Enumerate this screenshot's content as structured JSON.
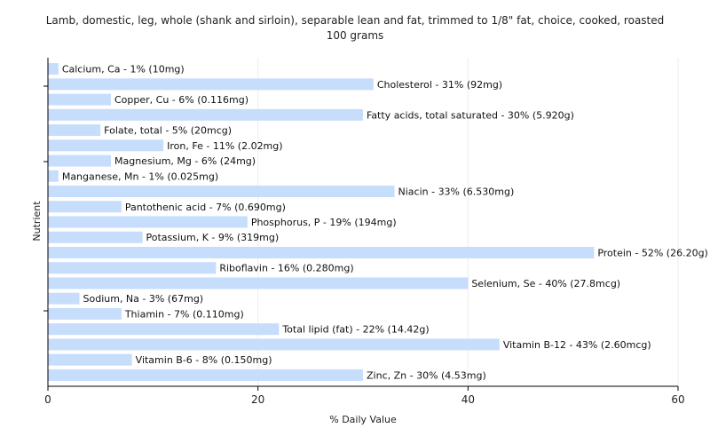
{
  "chart_data": {
    "type": "bar",
    "orientation": "horizontal",
    "title_lines": [
      "Lamb, domestic, leg, whole (shank and sirloin), separable lean and fat, trimmed to 1/8\" fat, choice, cooked, roasted",
      "100 grams"
    ],
    "xlabel": "% Daily Value",
    "ylabel": "Nutrient",
    "xlim": [
      0,
      60
    ],
    "xticks": [
      0,
      20,
      40,
      60
    ],
    "grid": true,
    "bar_color": "#c6ddfb",
    "categories": [
      "Calcium, Ca",
      "Cholesterol",
      "Copper, Cu",
      "Fatty acids, total saturated",
      "Folate, total",
      "Iron, Fe",
      "Magnesium, Mg",
      "Manganese, Mn",
      "Niacin",
      "Pantothenic acid",
      "Phosphorus, P",
      "Potassium, K",
      "Protein",
      "Riboflavin",
      "Selenium, Se",
      "Sodium, Na",
      "Thiamin",
      "Total lipid (fat)",
      "Vitamin B-12",
      "Vitamin B-6",
      "Zinc, Zn"
    ],
    "values": [
      1,
      31,
      6,
      30,
      5,
      11,
      6,
      1,
      33,
      7,
      19,
      9,
      52,
      16,
      40,
      3,
      7,
      22,
      43,
      8,
      30
    ],
    "labels": [
      "Calcium, Ca - 1% (10mg)",
      "Cholesterol - 31% (92mg)",
      "Copper, Cu - 6% (0.116mg)",
      "Fatty acids, total saturated - 30% (5.920g)",
      "Folate, total - 5% (20mcg)",
      "Iron, Fe - 11% (2.02mg)",
      "Magnesium, Mg - 6% (24mg)",
      "Manganese, Mn - 1% (0.025mg)",
      "Niacin - 33% (6.530mg)",
      "Pantothenic acid - 7% (0.690mg)",
      "Phosphorus, P - 19% (194mg)",
      "Potassium, K - 9% (319mg)",
      "Protein - 52% (26.20g)",
      "Riboflavin - 16% (0.280mg)",
      "Selenium, Se - 40% (27.8mcg)",
      "Sodium, Na - 3% (67mg)",
      "Thiamin - 7% (0.110mg)",
      "Total lipid (fat) - 22% (14.42g)",
      "Vitamin B-12 - 43% (2.60mcg)",
      "Vitamin B-6 - 8% (0.150mg)",
      "Zinc, Zn - 30% (4.53mg)"
    ]
  }
}
